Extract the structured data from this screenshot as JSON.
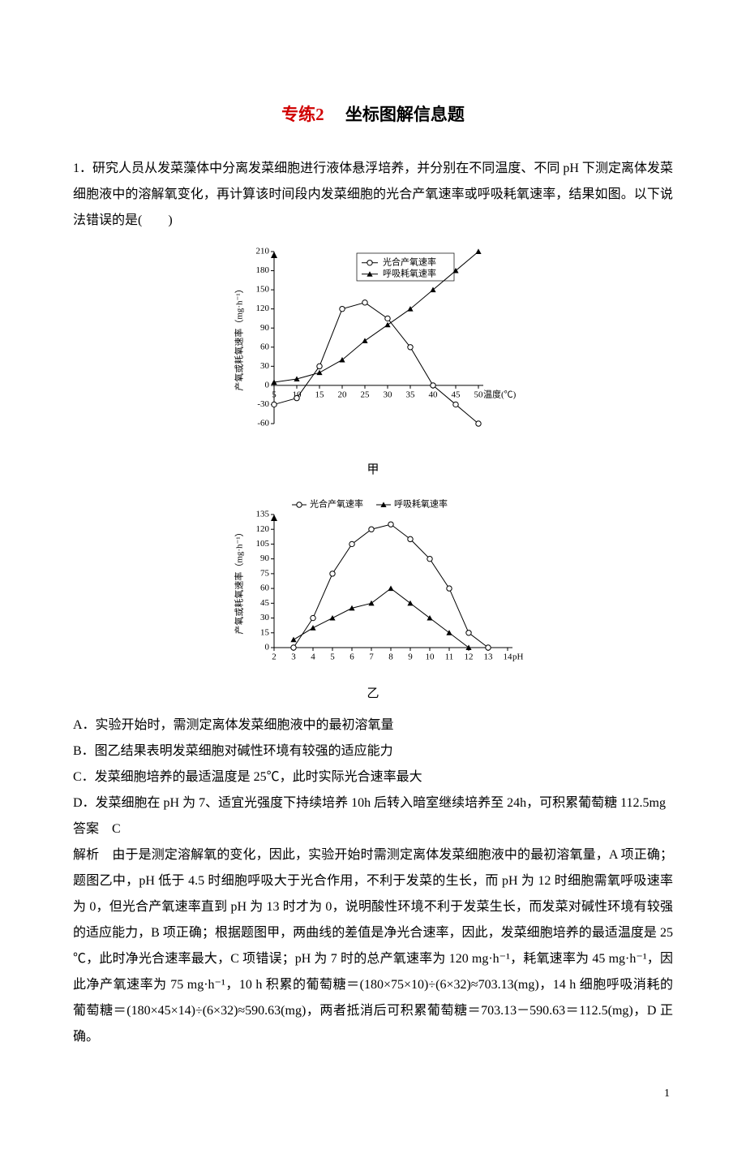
{
  "title_red": "专练2",
  "title_black": "坐标图解信息题",
  "question_number": "1．",
  "question_text": "研究人员从发菜藻体中分离发菜细胞进行液体悬浮培养，并分别在不同温度、不同 pH 下测定离体发菜细胞液中的溶解氧变化，再计算该时间段内发菜细胞的光合产氧速率或呼吸耗氧速率，结果如图。以下说法错误的是(　　)",
  "chart1": {
    "type": "line",
    "caption": "甲",
    "x_label": "温度(℃)",
    "y_label": "产氧或耗氧速率（mg·h⁻¹）",
    "x_ticks": [
      5,
      10,
      15,
      20,
      25,
      30,
      35,
      40,
      45,
      50
    ],
    "y_ticks": [
      -60,
      -30,
      0,
      30,
      60,
      90,
      120,
      150,
      180,
      210
    ],
    "ylim": [
      -60,
      210
    ],
    "xlim": [
      5,
      50
    ],
    "series": [
      {
        "name": "光合产氧速率",
        "marker": "hollow-circle",
        "color": "#000000",
        "data": [
          [
            5,
            -30
          ],
          [
            10,
            -20
          ],
          [
            15,
            30
          ],
          [
            20,
            120
          ],
          [
            25,
            130
          ],
          [
            30,
            105
          ],
          [
            35,
            60
          ],
          [
            40,
            0
          ],
          [
            45,
            -30
          ],
          [
            50,
            -60
          ]
        ]
      },
      {
        "name": "呼吸耗氧速率",
        "marker": "solid-triangle",
        "color": "#000000",
        "data": [
          [
            5,
            5
          ],
          [
            10,
            10
          ],
          [
            15,
            20
          ],
          [
            20,
            40
          ],
          [
            25,
            70
          ],
          [
            30,
            95
          ],
          [
            35,
            120
          ],
          [
            40,
            150
          ],
          [
            45,
            180
          ],
          [
            50,
            210
          ]
        ]
      }
    ],
    "legend_items": [
      "光合产氧速率",
      "呼吸耗氧速率"
    ],
    "axis_fontsize": 11,
    "background_color": "#ffffff",
    "line_width": 1
  },
  "chart2": {
    "type": "line",
    "caption": "乙",
    "x_label": "pH",
    "y_label": "产氧或耗氧速率（mg·h⁻¹）",
    "x_ticks": [
      2,
      3,
      4,
      5,
      6,
      7,
      8,
      9,
      10,
      11,
      12,
      13,
      14
    ],
    "y_ticks": [
      0,
      15,
      30,
      45,
      60,
      75,
      90,
      105,
      120,
      135
    ],
    "ylim": [
      0,
      135
    ],
    "xlim": [
      2,
      14
    ],
    "series": [
      {
        "name": "光合产氧速率",
        "marker": "hollow-circle",
        "color": "#000000",
        "data": [
          [
            3,
            0
          ],
          [
            4,
            30
          ],
          [
            5,
            75
          ],
          [
            6,
            105
          ],
          [
            7,
            120
          ],
          [
            8,
            125
          ],
          [
            9,
            110
          ],
          [
            10,
            90
          ],
          [
            11,
            60
          ],
          [
            12,
            15
          ],
          [
            13,
            0
          ]
        ]
      },
      {
        "name": "呼吸耗氧速率",
        "marker": "solid-triangle",
        "color": "#000000",
        "data": [
          [
            3,
            8
          ],
          [
            4,
            20
          ],
          [
            5,
            30
          ],
          [
            6,
            40
          ],
          [
            7,
            45
          ],
          [
            8,
            60
          ],
          [
            9,
            45
          ],
          [
            10,
            30
          ],
          [
            11,
            15
          ],
          [
            12,
            0
          ]
        ]
      }
    ],
    "legend_items": [
      "光合产氧速率",
      "呼吸耗氧速率"
    ],
    "axis_fontsize": 11,
    "background_color": "#ffffff",
    "line_width": 1
  },
  "options": {
    "A": "A．实验开始时，需测定离体发菜细胞液中的最初溶氧量",
    "B": "B．图乙结果表明发菜细胞对碱性环境有较强的适应能力",
    "C": "C．发菜细胞培养的最适温度是 25℃，此时实际光合速率最大",
    "D": "D．发菜细胞在 pH 为 7、适宜光强度下持续培养 10h 后转入暗室继续培养至 24h，可积累葡萄糖 112.5mg"
  },
  "answer_label": "答案",
  "answer_value": "C",
  "explanation_label": "解析",
  "explanation_text": "由于是测定溶解氧的变化，因此，实验开始时需测定离体发菜细胞液中的最初溶氧量，A 项正确；题图乙中，pH 低于 4.5 时细胞呼吸大于光合作用，不利于发菜的生长，而 pH 为 12 时细胞需氧呼吸速率为 0，但光合产氧速率直到 pH 为 13 时才为 0，说明酸性环境不利于发菜生长，而发菜对碱性环境有较强的适应能力，B 项正确；根据题图甲，两曲线的差值是净光合速率，因此，发菜细胞培养的最适温度是 25 ℃，此时净光合速率最大，C 项错误；pH 为 7 时的总产氧速率为 120 mg·h⁻¹，耗氧速率为 45 mg·h⁻¹，因此净产氧速率为 75 mg·h⁻¹，10 h 积累的葡萄糖＝(180×75×10)÷(6×32)≈703.13(mg)，14 h 细胞呼吸消耗的葡萄糖＝(180×45×14)÷(6×32)≈590.63(mg)，两者抵消后可积累葡萄糖＝703.13－590.63＝112.5(mg)，D 正确。",
  "page_number": "1"
}
